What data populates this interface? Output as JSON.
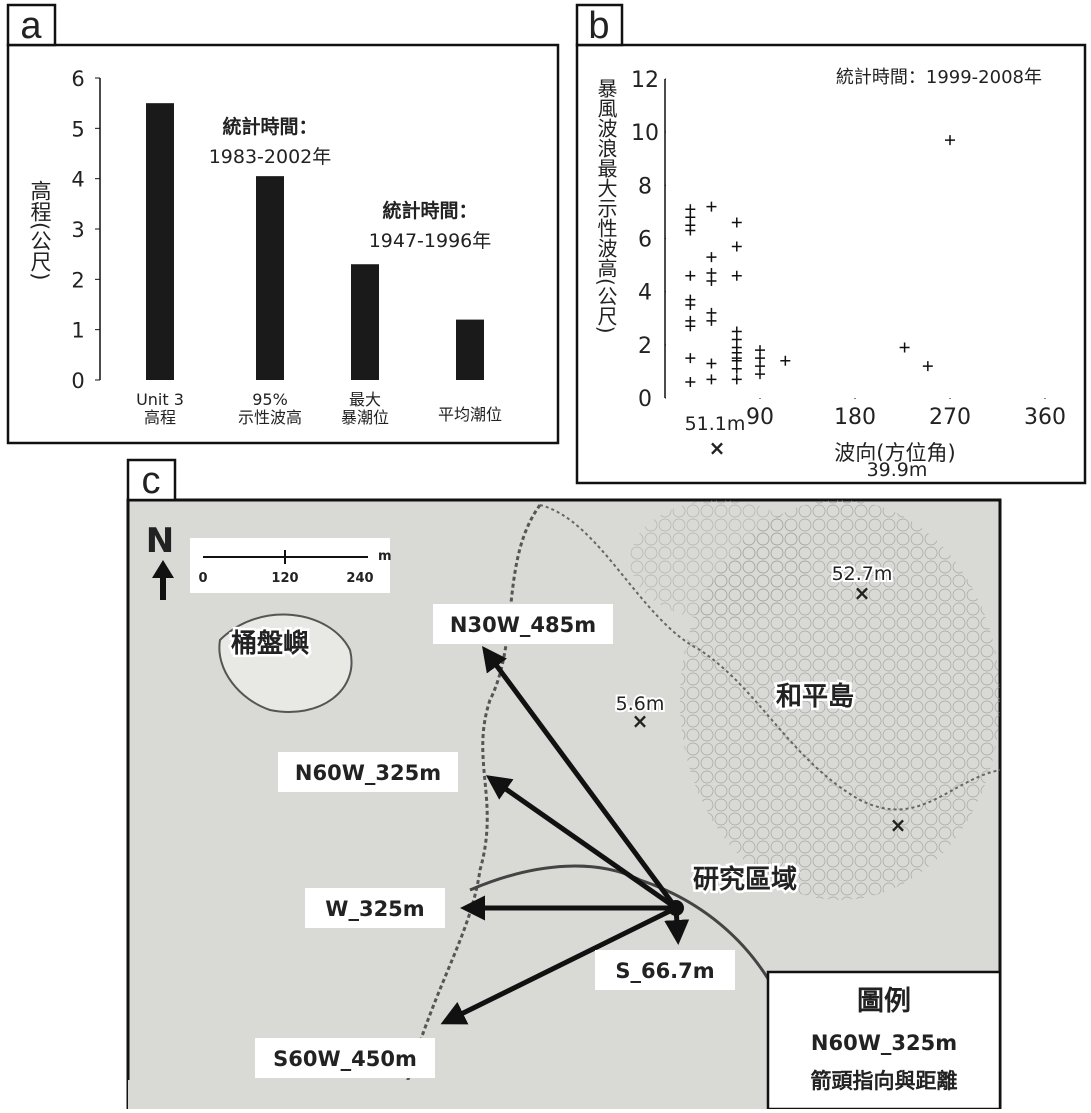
{
  "chart_data": [
    {
      "type": "bar",
      "panel": "a",
      "categories": [
        [
          "Unit 3",
          "高程"
        ],
        [
          "95%",
          "示性波高"
        ],
        [
          "最大",
          "暴潮位"
        ],
        [
          "平均潮位"
        ]
      ],
      "values": [
        5.5,
        4.05,
        2.3,
        1.2
      ],
      "color": "#1a1a1a",
      "ylim": [
        0,
        6
      ],
      "yticks": [
        0,
        1,
        2,
        3,
        4,
        5,
        6
      ],
      "y_label": "高程(公尺)",
      "annotations": [
        [
          "統計時間：",
          "1983-2002年"
        ],
        [
          "統計時間：",
          "1947-1996年"
        ]
      ]
    },
    {
      "type": "scatter",
      "panel": "b",
      "title": "統計時間：1999-2008年",
      "x_label": "波向(方位角)",
      "y_label": "暴風波浪最大示性波高(公尺)",
      "xlim": [
        0,
        360
      ],
      "xticks": [
        90,
        180,
        270,
        360
      ],
      "ylim": [
        0,
        12
      ],
      "yticks": [
        0,
        2,
        4,
        6,
        8,
        10,
        12
      ],
      "color": "#111111",
      "x": [
        24,
        24,
        24,
        24,
        24,
        24,
        24,
        24,
        24,
        24,
        24,
        44,
        44,
        44,
        44,
        44,
        44,
        44,
        44,
        68,
        68,
        68,
        68,
        68,
        68,
        68,
        68,
        68,
        68,
        68,
        90,
        90,
        90,
        90,
        114,
        227,
        249,
        270
      ],
      "values": [
        7.1,
        6.8,
        6.5,
        6.3,
        4.6,
        3.7,
        3.5,
        2.9,
        2.7,
        1.5,
        0.6,
        7.2,
        5.3,
        4.7,
        4.4,
        3.2,
        2.9,
        1.3,
        0.7,
        6.6,
        5.7,
        4.6,
        2.5,
        2.2,
        1.9,
        1.7,
        1.5,
        1.4,
        1.1,
        0.7,
        1.8,
        1.5,
        1.2,
        0.9,
        1.4,
        1.9,
        1.2,
        9.7
      ]
    }
  ],
  "map": {
    "panel": "c",
    "north": "N",
    "scale": [
      "0",
      "120",
      "240",
      "m"
    ],
    "islands": [
      "桶盤嶼",
      "和平島"
    ],
    "elevations": [
      "52.7m",
      "5.6m",
      "51.1m",
      "39.9m"
    ],
    "site": "研究區域",
    "arrows": [
      "N30W_485m",
      "N60W_325m",
      "W_325m",
      "S_66.7m",
      "S60W_450m"
    ],
    "legend": {
      "title": "圖例",
      "example": "N60W_325m",
      "text": "箭頭指向與距離"
    }
  }
}
